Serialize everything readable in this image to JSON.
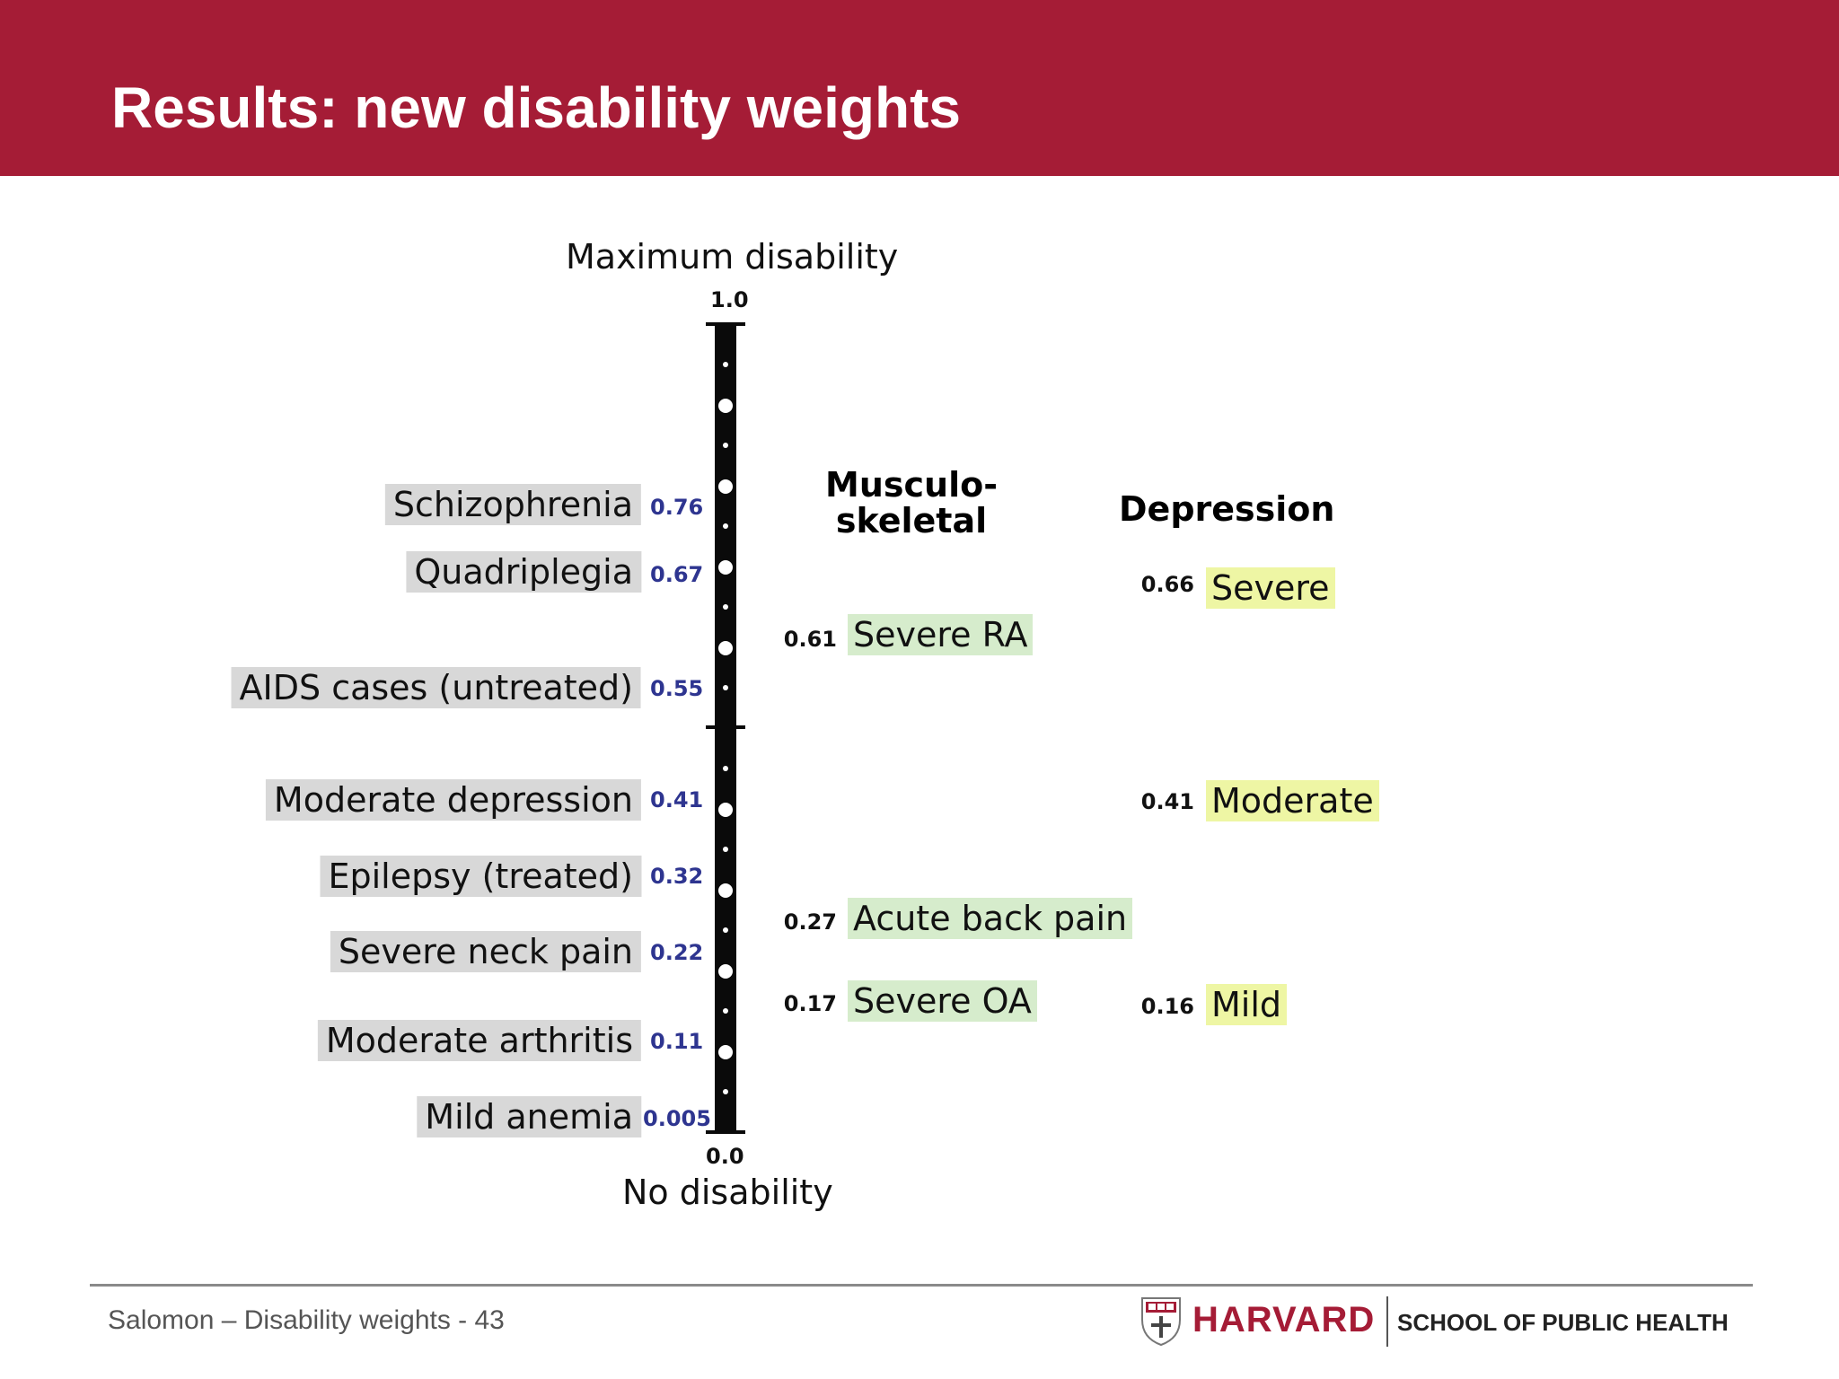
{
  "slide": {
    "title": "Results: new disability weights",
    "footer": "Salomon – Disability weights - 43",
    "logo_name": "HARVARD",
    "logo_school": "SCHOOL OF PUBLIC HEALTH",
    "colors": {
      "header": "#a51c36",
      "left_label_bg": "#d8d8d8",
      "left_value_text": "#2e3590",
      "musculoskeletal_bg": "#d6eccc",
      "depression_bg": "#eef6a4"
    }
  },
  "scale": {
    "top_label": "Maximum disability",
    "bottom_label": "No disability",
    "max_tick": "1.0",
    "min_tick": "0.0"
  },
  "left_items": [
    {
      "label": "Schizophrenia",
      "value": "0.76"
    },
    {
      "label": "Quadriplegia",
      "value": "0.67"
    },
    {
      "label": "AIDS cases (untreated)",
      "value": "0.55"
    },
    {
      "label": "Moderate depression",
      "value": "0.41"
    },
    {
      "label": "Epilepsy (treated)",
      "value": "0.32"
    },
    {
      "label": "Severe neck pain",
      "value": "0.22"
    },
    {
      "label": "Moderate arthritis",
      "value": "0.11"
    },
    {
      "label": "Mild anemia",
      "value": "0.005"
    }
  ],
  "musculoskeletal": {
    "heading_line1": "Musculo-",
    "heading_line2": "skeletal",
    "items": [
      {
        "label": "Severe RA",
        "value": "0.61"
      },
      {
        "label": "Acute back pain",
        "value": "0.27"
      },
      {
        "label": "Severe OA",
        "value": "0.17"
      }
    ]
  },
  "depression": {
    "heading": "Depression",
    "items": [
      {
        "label": "Severe",
        "value": "0.66"
      },
      {
        "label": "Moderate",
        "value": "0.41"
      },
      {
        "label": "Mild",
        "value": "0.16"
      }
    ]
  }
}
